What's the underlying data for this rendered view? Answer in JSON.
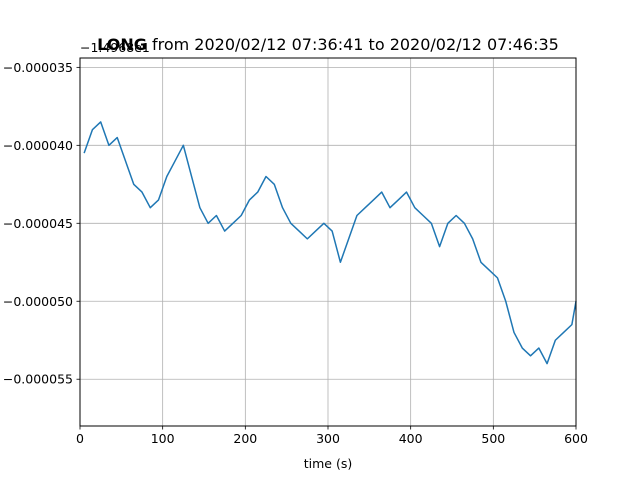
{
  "chart_data": {
    "type": "line",
    "title": {
      "bold": "LONG",
      "rest": " from 2020/02/12 07:36:41 to 2020/02/12 07:46:35"
    },
    "offset_label": "−1.4968e1",
    "xlabel": "time (s)",
    "ylabel": "",
    "xlim": [
      0,
      600
    ],
    "ylim": [
      -5.8e-05,
      -3.44e-05
    ],
    "x_ticks": [
      0,
      100,
      200,
      300,
      400,
      500,
      600
    ],
    "x_tick_labels": [
      "0",
      "100",
      "200",
      "300",
      "400",
      "500",
      "600"
    ],
    "y_ticks": [
      -5.5e-05,
      -5e-05,
      -4.5e-05,
      -4e-05,
      -3.5e-05
    ],
    "y_tick_labels": [
      "−0.000055",
      "−0.000050",
      "−0.000045",
      "−0.000040",
      "−0.000035"
    ],
    "grid": true,
    "series": [
      {
        "color": "#1f77b4",
        "points": [
          [
            5,
            -4.05e-05
          ],
          [
            15,
            -3.9e-05
          ],
          [
            25,
            -3.85e-05
          ],
          [
            35,
            -4e-05
          ],
          [
            45,
            -3.95e-05
          ],
          [
            55,
            -4.1e-05
          ],
          [
            65,
            -4.25e-05
          ],
          [
            75,
            -4.3e-05
          ],
          [
            85,
            -4.4e-05
          ],
          [
            95,
            -4.35e-05
          ],
          [
            105,
            -4.2e-05
          ],
          [
            115,
            -4.1e-05
          ],
          [
            125,
            -4e-05
          ],
          [
            135,
            -4.2e-05
          ],
          [
            145,
            -4.4e-05
          ],
          [
            155,
            -4.5e-05
          ],
          [
            165,
            -4.45e-05
          ],
          [
            175,
            -4.55e-05
          ],
          [
            185,
            -4.5e-05
          ],
          [
            195,
            -4.45e-05
          ],
          [
            205,
            -4.35e-05
          ],
          [
            215,
            -4.3e-05
          ],
          [
            225,
            -4.2e-05
          ],
          [
            235,
            -4.25e-05
          ],
          [
            245,
            -4.4e-05
          ],
          [
            255,
            -4.5e-05
          ],
          [
            265,
            -4.55e-05
          ],
          [
            275,
            -4.6e-05
          ],
          [
            285,
            -4.55e-05
          ],
          [
            295,
            -4.5e-05
          ],
          [
            305,
            -4.55e-05
          ],
          [
            315,
            -4.75e-05
          ],
          [
            325,
            -4.6e-05
          ],
          [
            335,
            -4.45e-05
          ],
          [
            345,
            -4.4e-05
          ],
          [
            355,
            -4.35e-05
          ],
          [
            365,
            -4.3e-05
          ],
          [
            375,
            -4.4e-05
          ],
          [
            385,
            -4.35e-05
          ],
          [
            395,
            -4.3e-05
          ],
          [
            405,
            -4.4e-05
          ],
          [
            415,
            -4.45e-05
          ],
          [
            425,
            -4.5e-05
          ],
          [
            435,
            -4.65e-05
          ],
          [
            445,
            -4.5e-05
          ],
          [
            455,
            -4.45e-05
          ],
          [
            465,
            -4.5e-05
          ],
          [
            475,
            -4.6e-05
          ],
          [
            485,
            -4.75e-05
          ],
          [
            495,
            -4.8e-05
          ],
          [
            505,
            -4.85e-05
          ],
          [
            515,
            -5e-05
          ],
          [
            525,
            -5.2e-05
          ],
          [
            535,
            -5.3e-05
          ],
          [
            545,
            -5.35e-05
          ],
          [
            555,
            -5.3e-05
          ],
          [
            565,
            -5.4e-05
          ],
          [
            575,
            -5.25e-05
          ],
          [
            585,
            -5.2e-05
          ],
          [
            595,
            -5.15e-05
          ],
          [
            600,
            -5e-05
          ]
        ]
      }
    ]
  }
}
